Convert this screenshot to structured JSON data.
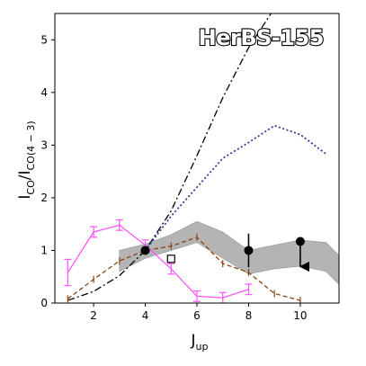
{
  "chart_data": {
    "type": "line",
    "title": "HerBS-155",
    "xlabel": {
      "main": "J",
      "sub": "up"
    },
    "ylabel": {
      "main": "I",
      "sub1": "CO",
      "mid": "/I",
      "sub2": "CO(4 − 3)"
    },
    "xlim": [
      0.5,
      11.5
    ],
    "ylim": [
      0,
      5.5
    ],
    "x_ticks": [
      2,
      4,
      6,
      8,
      10
    ],
    "y_ticks": [
      0,
      1,
      2,
      3,
      4,
      5
    ],
    "grid": false,
    "legend": "none",
    "band": {
      "color": "#a8a8a8",
      "x": [
        3,
        4,
        5,
        6,
        7,
        8,
        9,
        10,
        11,
        11.5
      ],
      "upper": [
        1.0,
        1.12,
        1.3,
        1.55,
        1.35,
        1.0,
        1.1,
        1.2,
        1.15,
        0.9
      ],
      "lower": [
        0.6,
        0.85,
        1.0,
        1.15,
        0.85,
        0.55,
        0.65,
        0.7,
        0.6,
        0.35
      ]
    },
    "series": [
      {
        "style": "dashdot",
        "color": "#000000",
        "x": [
          1,
          2,
          3,
          4,
          5,
          6,
          7,
          8,
          9
        ],
        "y": [
          0.05,
          0.22,
          0.52,
          1.0,
          1.75,
          2.8,
          3.9,
          4.85,
          5.6
        ]
      },
      {
        "style": "dotted",
        "color": "#3a3a9a",
        "x": [
          4,
          5,
          6,
          7,
          8,
          9,
          10,
          11
        ],
        "y": [
          1.0,
          1.65,
          2.2,
          2.75,
          3.05,
          3.37,
          3.2,
          2.83
        ]
      },
      {
        "style": "dashed-errorbar",
        "color": "#8b4513",
        "x": [
          1,
          2,
          3,
          4,
          5,
          6,
          7,
          8,
          9,
          10
        ],
        "y": [
          0.08,
          0.45,
          0.8,
          1.0,
          1.08,
          1.25,
          0.75,
          0.58,
          0.18,
          0.05
        ]
      },
      {
        "style": "solid-errorbar",
        "color": "#ff55ff",
        "x": [
          1,
          2,
          3,
          4,
          5,
          6,
          7,
          8
        ],
        "y": [
          0.58,
          1.35,
          1.48,
          1.1,
          0.65,
          0.13,
          0.1,
          0.26
        ],
        "yerr": [
          0.25,
          0.1,
          0.1,
          0.1,
          0.1,
          0.1,
          0.1,
          0.1
        ]
      }
    ],
    "observed": [
      {
        "x": 4,
        "y": 1.0,
        "yerr": 0,
        "upper_limit": false
      },
      {
        "x": 8,
        "y": 1.0,
        "yerr": 0.32,
        "upper_limit": false
      },
      {
        "x": 10,
        "y": 1.17,
        "yerr": 0,
        "upper_limit": true
      }
    ],
    "open_square": {
      "x": 5,
      "y": 0.84
    }
  }
}
